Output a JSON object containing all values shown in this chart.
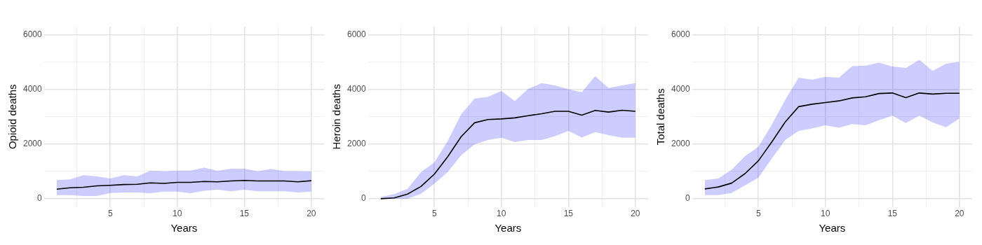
{
  "chart_data": [
    {
      "type": "line",
      "xlabel": "Years",
      "ylabel": "Opioid deaths",
      "x": [
        1,
        2,
        3,
        4,
        5,
        6,
        7,
        8,
        9,
        10,
        11,
        12,
        13,
        14,
        15,
        16,
        17,
        18,
        19,
        20
      ],
      "xlim": [
        0.05,
        20.95
      ],
      "ylim": [
        -300,
        6300
      ],
      "xticks": [
        {
          "value": 2.5,
          "label": null
        },
        5,
        {
          "value": 7.5,
          "label": null
        },
        10,
        {
          "value": 12.5,
          "label": null
        },
        15,
        {
          "value": 17.5,
          "label": null
        },
        20
      ],
      "yticks": [
        0,
        {
          "value": 1000,
          "label": null
        },
        2000,
        {
          "value": 3000,
          "label": null
        },
        4000,
        {
          "value": 5000,
          "label": null
        },
        6000
      ],
      "grid": true,
      "legend": false,
      "marker": "none",
      "line_style": "solid",
      "series": [
        {
          "color": "#000000",
          "values": [
            350,
            400,
            420,
            470,
            490,
            520,
            530,
            580,
            560,
            600,
            600,
            630,
            620,
            650,
            670,
            650,
            650,
            650,
            620,
            660
          ],
          "lower": [
            130,
            130,
            100,
            100,
            210,
            230,
            230,
            200,
            260,
            260,
            200,
            290,
            330,
            270,
            330,
            270,
            270,
            270,
            230,
            260
          ],
          "upper": [
            680,
            710,
            860,
            820,
            740,
            860,
            820,
            1030,
            1000,
            1030,
            1030,
            1140,
            1020,
            1100,
            1100,
            1000,
            1090,
            1010,
            1010,
            1000
          ]
        }
      ]
    },
    {
      "type": "line",
      "xlabel": "Years",
      "ylabel": "Heroin deaths",
      "x": [
        1,
        2,
        3,
        4,
        5,
        6,
        7,
        8,
        9,
        10,
        11,
        12,
        13,
        14,
        15,
        16,
        17,
        18,
        19,
        20
      ],
      "xlim": [
        0.05,
        20.95
      ],
      "ylim": [
        -300,
        6300
      ],
      "xticks": [
        {
          "value": 2.5,
          "label": null
        },
        5,
        {
          "value": 7.5,
          "label": null
        },
        10,
        {
          "value": 12.5,
          "label": null
        },
        15,
        {
          "value": 17.5,
          "label": null
        },
        20
      ],
      "yticks": [
        0,
        {
          "value": 1000,
          "label": null
        },
        2000,
        {
          "value": 3000,
          "label": null
        },
        4000,
        {
          "value": 5000,
          "label": null
        },
        6000
      ],
      "grid": true,
      "legend": false,
      "marker": "none",
      "line_style": "solid",
      "series": [
        {
          "color": "#000000",
          "values": [
            0,
            30,
            170,
            450,
            900,
            1540,
            2270,
            2780,
            2900,
            2920,
            2960,
            3040,
            3110,
            3200,
            3200,
            3060,
            3230,
            3170,
            3240,
            3200
          ],
          "lower": [
            0,
            0,
            0,
            180,
            550,
            980,
            1590,
            1990,
            2150,
            2230,
            2070,
            2150,
            2150,
            2290,
            2480,
            2240,
            2440,
            2330,
            2230,
            2230
          ],
          "upper": [
            60,
            170,
            360,
            970,
            1330,
            2120,
            3090,
            3660,
            3730,
            3940,
            3580,
            4020,
            4230,
            4150,
            4010,
            3900,
            4490,
            4050,
            4150,
            4230
          ]
        }
      ]
    },
    {
      "type": "line",
      "xlabel": "Years",
      "ylabel": "Total deaths",
      "x": [
        1,
        2,
        3,
        4,
        5,
        6,
        7,
        8,
        9,
        10,
        11,
        12,
        13,
        14,
        15,
        16,
        17,
        18,
        19,
        20
      ],
      "xlim": [
        0.05,
        20.95
      ],
      "ylim": [
        -300,
        6300
      ],
      "xticks": [
        {
          "value": 2.5,
          "label": null
        },
        5,
        {
          "value": 7.5,
          "label": null
        },
        10,
        {
          "value": 12.5,
          "label": null
        },
        15,
        {
          "value": 17.5,
          "label": null
        },
        20
      ],
      "yticks": [
        0,
        {
          "value": 1000,
          "label": null
        },
        2000,
        {
          "value": 3000,
          "label": null
        },
        4000,
        {
          "value": 5000,
          "label": null
        },
        6000
      ],
      "grid": true,
      "legend": false,
      "marker": "none",
      "line_style": "solid",
      "series": [
        {
          "color": "#000000",
          "values": [
            360,
            430,
            570,
            920,
            1390,
            2080,
            2810,
            3370,
            3460,
            3520,
            3580,
            3690,
            3730,
            3850,
            3870,
            3700,
            3870,
            3830,
            3860,
            3860
          ],
          "lower": [
            130,
            130,
            210,
            490,
            770,
            1470,
            2150,
            2480,
            2570,
            2690,
            2600,
            2730,
            2690,
            2870,
            3040,
            2770,
            3040,
            2790,
            2620,
            2940
          ],
          "upper": [
            680,
            740,
            1060,
            1560,
            1900,
            2710,
            3620,
            4430,
            4360,
            4460,
            4430,
            4850,
            4870,
            4980,
            4840,
            4790,
            5080,
            4680,
            4940,
            5020
          ]
        }
      ]
    }
  ]
}
